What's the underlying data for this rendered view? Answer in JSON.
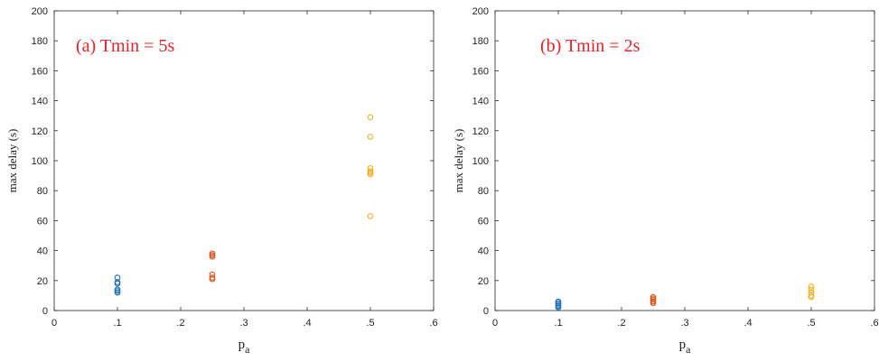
{
  "chart_data": [
    {
      "type": "scatter",
      "annotation": "(a) Tmin = 5s",
      "annotation_color": "#e8202a",
      "xlabel_main": "p",
      "xlabel_sub": "a",
      "ylabel": "max delay (s)",
      "xlim": [
        0,
        0.6
      ],
      "ylim": [
        0,
        200
      ],
      "x_ticks": [
        0,
        0.1,
        0.2,
        0.3,
        0.4,
        0.5,
        0.6
      ],
      "x_tick_labels": [
        "0",
        ".1",
        ".2",
        ".3",
        ".4",
        ".5",
        ".6"
      ],
      "y_ticks": [
        0,
        20,
        40,
        60,
        80,
        100,
        120,
        140,
        160,
        180,
        200
      ],
      "y_tick_labels": [
        "0",
        "20",
        "40",
        "60",
        "80",
        "100",
        "120",
        "140",
        "160",
        "180",
        "200"
      ],
      "grid": false,
      "series": [
        {
          "color": "#1f6fb8",
          "x": [
            0.1,
            0.1,
            0.1,
            0.1,
            0.1,
            0.1
          ],
          "y": [
            22,
            19,
            18,
            14,
            13,
            12
          ]
        },
        {
          "color": "#d9541c",
          "x": [
            0.25,
            0.25,
            0.25,
            0.25,
            0.25,
            0.25
          ],
          "y": [
            38,
            37,
            36,
            24,
            22,
            21
          ]
        },
        {
          "color": "#edb01f",
          "x": [
            0.5,
            0.5,
            0.5,
            0.5,
            0.5,
            0.5,
            0.5
          ],
          "y": [
            129,
            116,
            95,
            93,
            92,
            91,
            63
          ]
        }
      ]
    },
    {
      "type": "scatter",
      "annotation": "(b) Tmin = 2s",
      "annotation_color": "#e8202a",
      "xlabel_main": "p",
      "xlabel_sub": "a",
      "ylabel": "max delay (s)",
      "xlim": [
        0,
        0.6
      ],
      "ylim": [
        0,
        200
      ],
      "x_ticks": [
        0,
        0.1,
        0.2,
        0.3,
        0.4,
        0.5,
        0.6
      ],
      "x_tick_labels": [
        "0",
        ".1",
        ".2",
        ".3",
        ".4",
        ".5",
        ".6"
      ],
      "y_ticks": [
        0,
        20,
        40,
        60,
        80,
        100,
        120,
        140,
        160,
        180,
        200
      ],
      "y_tick_labels": [
        "0",
        "20",
        "40",
        "60",
        "80",
        "100",
        "120",
        "140",
        "160",
        "180",
        "200"
      ],
      "grid": false,
      "series": [
        {
          "color": "#1f6fb8",
          "x": [
            0.1,
            0.1,
            0.1,
            0.1,
            0.1
          ],
          "y": [
            6,
            5,
            4,
            3,
            2
          ]
        },
        {
          "color": "#d9541c",
          "x": [
            0.25,
            0.25,
            0.25,
            0.25,
            0.25
          ],
          "y": [
            9,
            8,
            7,
            6,
            5
          ]
        },
        {
          "color": "#edb01f",
          "x": [
            0.5,
            0.5,
            0.5,
            0.5,
            0.5
          ],
          "y": [
            16,
            14,
            12,
            10,
            9
          ]
        }
      ]
    }
  ]
}
